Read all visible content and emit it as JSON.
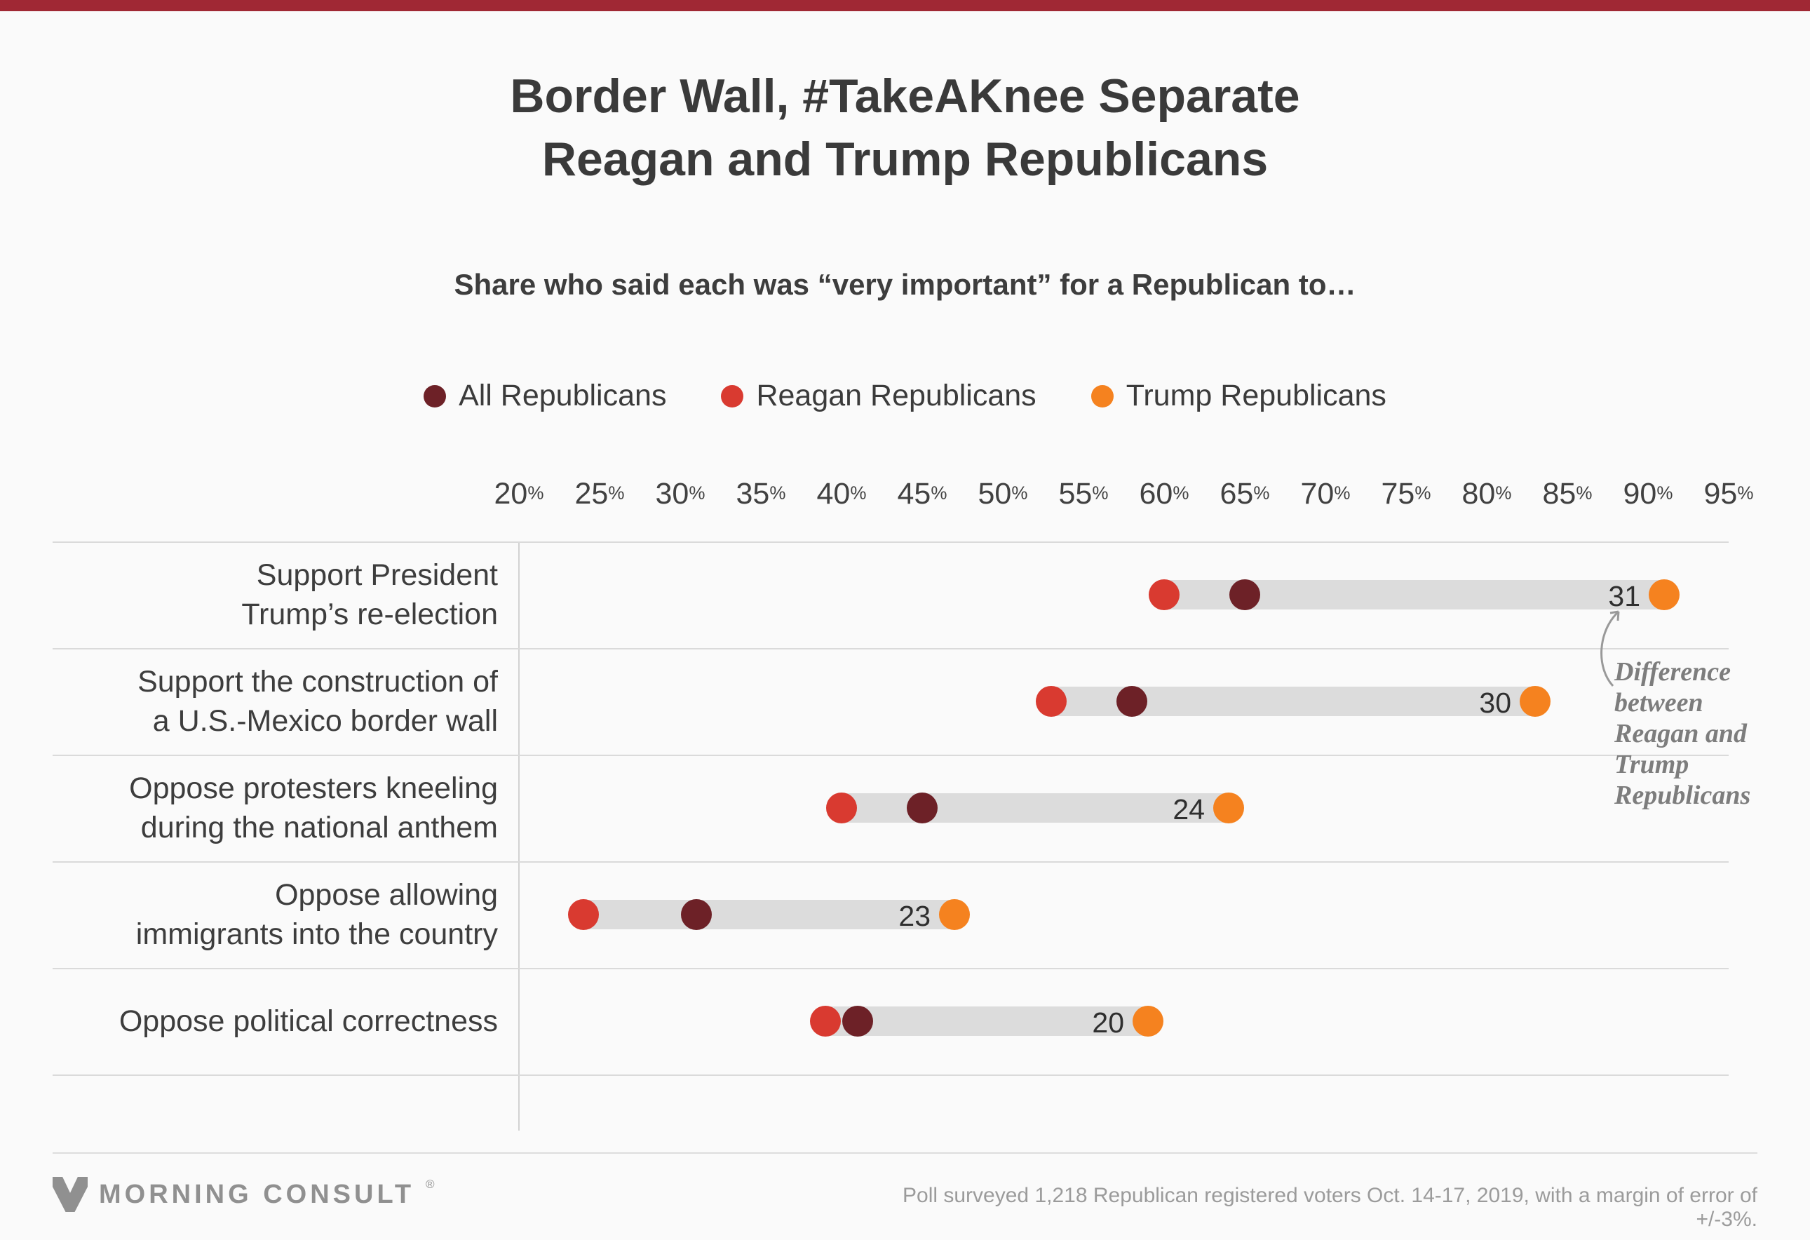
{
  "page": {
    "title": "Border Wall, #TakeAKnee Separate\nReagan and Trump Republicans",
    "subtitle": "Share who said each was “very important” for a Republican to…"
  },
  "legend": [
    {
      "label": "All Republicans",
      "color": "#6d2127"
    },
    {
      "label": "Reagan Republicans",
      "color": "#d93a30"
    },
    {
      "label": "Trump Republicans",
      "color": "#f5821f"
    }
  ],
  "chart_data": {
    "type": "scatter",
    "subtype": "dumbbell-dot-plot",
    "title": "Border Wall, #TakeAKnee Separate Reagan and Trump Republicans",
    "subtitle": "Share who said each was “very important” for a Republican to…",
    "x_axis": {
      "unit": "%",
      "range": [
        20,
        95
      ],
      "ticks": [
        20,
        25,
        30,
        35,
        40,
        45,
        50,
        55,
        60,
        65,
        70,
        75,
        80,
        85,
        90,
        95
      ]
    },
    "series_names": [
      "All Republicans",
      "Reagan Republicans",
      "Trump Republicans"
    ],
    "rows": [
      {
        "category": "Support President\nTrump’s re-election",
        "reagan": 60,
        "all": 65,
        "trump": 91,
        "difference": 31
      },
      {
        "category": "Support the construction of\na U.S.-Mexico border wall",
        "reagan": 53,
        "all": 58,
        "trump": 83,
        "difference": 30
      },
      {
        "category": "Oppose protesters kneeling\nduring the national anthem",
        "reagan": 40,
        "all": 45,
        "trump": 64,
        "difference": 24
      },
      {
        "category": "Oppose allowing\nimmigrants into the country",
        "reagan": 24,
        "all": 31,
        "trump": 47,
        "difference": 23
      },
      {
        "category": "Oppose political correctness",
        "reagan": 39,
        "all": 41,
        "trump": 59,
        "difference": 20
      }
    ],
    "annotation": "Difference\nbetween\nReagan and\nTrump\nRepublicans",
    "legend_position": "top-center",
    "grid": false
  },
  "footer": {
    "brand": "MORNING CONSULT",
    "registered": "®",
    "source": "Poll surveyed 1,218 Republican registered voters Oct. 14-17, 2019, with a margin of error of +/-3%."
  },
  "colors": {
    "background": "#fafafa",
    "top_bar": "#a02834",
    "title_text": "#3a3a3a",
    "axis_text": "#414141",
    "category_text": "#3d3d3d",
    "bar": "#dcdcdc",
    "separator": "#dadada",
    "all_republicans": "#6d2127",
    "reagan_republicans": "#d93a30",
    "trump_republicans": "#f5821f",
    "annotation_text": "#7d7d7d",
    "footer_text": "#909090",
    "source_text": "#9b9b9b"
  }
}
